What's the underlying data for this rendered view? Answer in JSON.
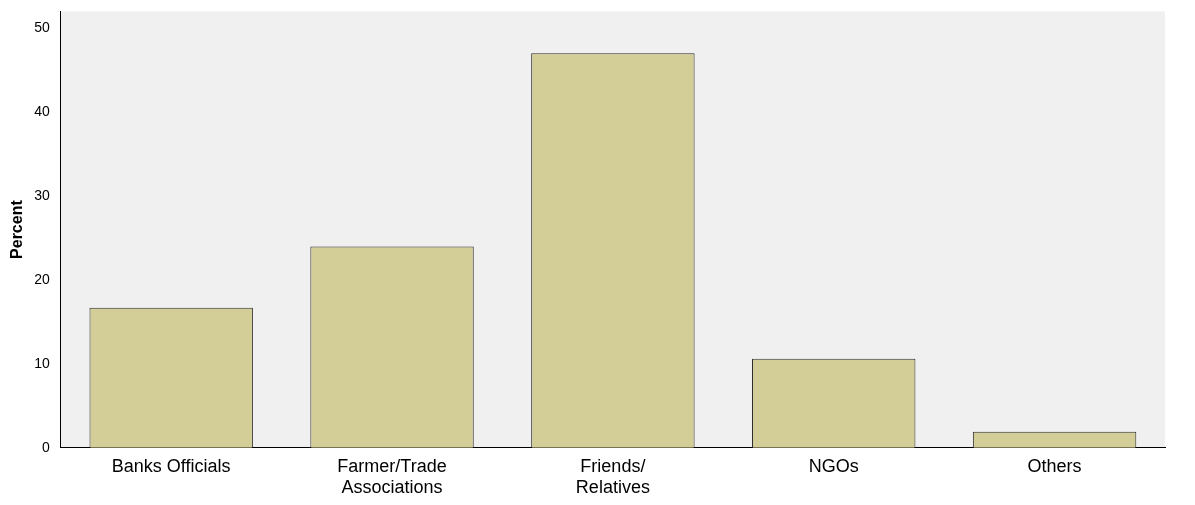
{
  "chart_data": {
    "type": "bar",
    "ylabel": "Percent",
    "categories": [
      "Banks Officials",
      "Farmer/Trade Associations",
      "Friends/ Relatives",
      "NGOs",
      "Others"
    ],
    "values": [
      16.7,
      24.0,
      47.0,
      10.6,
      1.9
    ],
    "color": "#d3cd98",
    "ylim": [
      0,
      52
    ],
    "yticks": [
      0,
      10,
      20,
      30,
      40,
      50
    ],
    "grid": false,
    "legend": false
  }
}
